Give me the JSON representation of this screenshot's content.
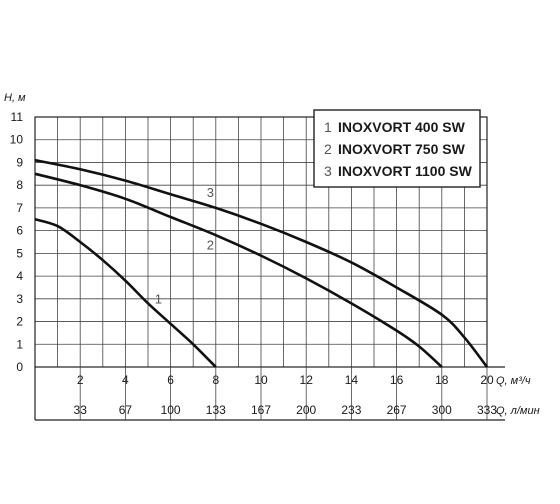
{
  "chart_data": {
    "type": "line",
    "ylabel": "H, м",
    "xlabel": "Q, м³/ч",
    "xlabel2": "Q, л/мин",
    "xlim": [
      0,
      20
    ],
    "ylim": [
      0,
      11
    ],
    "grid": true,
    "legend_position": "top-right",
    "x_ticks": [
      "2",
      "4",
      "6",
      "8",
      "10",
      "12",
      "14",
      "16",
      "18",
      "20"
    ],
    "x2_ticks": [
      "33",
      "67",
      "100",
      "133",
      "167",
      "200",
      "233",
      "267",
      "300",
      "333"
    ],
    "y_ticks": [
      "0",
      "1",
      "2",
      "3",
      "4",
      "5",
      "6",
      "7",
      "8",
      "9",
      "10",
      "11"
    ],
    "series": [
      {
        "name": "INOXVORT 400 SW",
        "number": "1",
        "color": "#111111",
        "x": [
          0,
          1,
          2,
          3,
          4,
          5,
          6,
          7,
          8
        ],
        "y": [
          6.5,
          6.2,
          5.5,
          4.7,
          3.8,
          2.8,
          1.9,
          1.0,
          0
        ]
      },
      {
        "name": "INOXVORT 750 SW",
        "number": "2",
        "color": "#111111",
        "x": [
          0,
          2,
          4,
          6,
          8,
          10,
          12,
          14,
          16,
          17,
          18
        ],
        "y": [
          8.5,
          8.0,
          7.4,
          6.6,
          5.8,
          4.9,
          3.9,
          2.8,
          1.6,
          0.9,
          0
        ]
      },
      {
        "name": "INOXVORT 1100 SW",
        "number": "3",
        "color": "#111111",
        "x": [
          0,
          2,
          4,
          6,
          8,
          10,
          12,
          14,
          16,
          18,
          19,
          20
        ],
        "y": [
          9.1,
          8.7,
          8.2,
          7.6,
          7.0,
          6.3,
          5.5,
          4.6,
          3.5,
          2.3,
          1.3,
          0
        ]
      }
    ]
  }
}
